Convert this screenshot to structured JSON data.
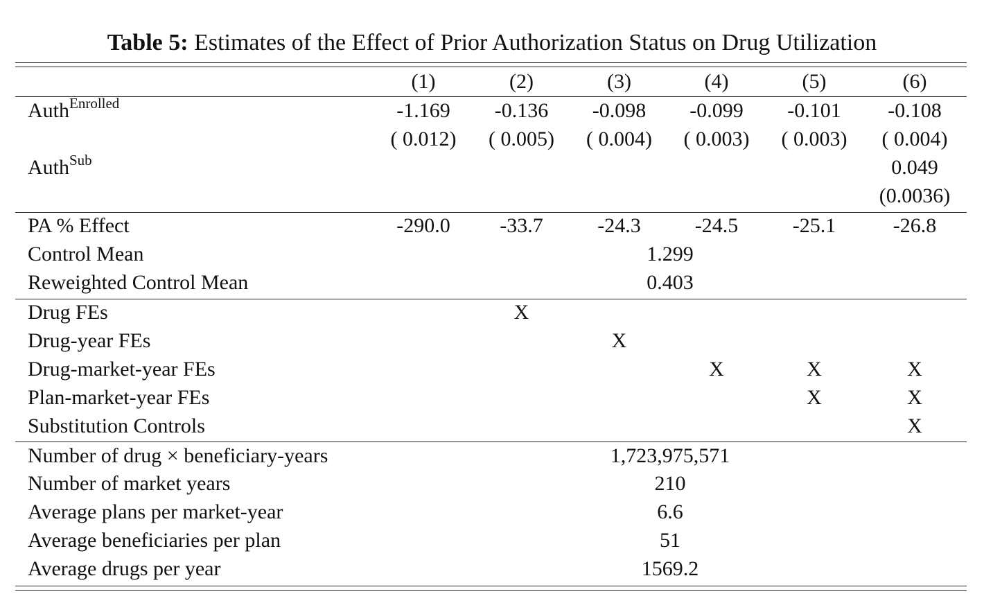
{
  "table": {
    "caption_label": "Table 5:",
    "caption_text": " Estimates of the Effect of Prior Authorization Status on Drug Utilization",
    "column_headers": [
      "(1)",
      "(2)",
      "(3)",
      "(4)",
      "(5)",
      "(6)"
    ],
    "auth_enrolled": {
      "base": "Auth",
      "sup": "Enrolled",
      "coef": [
        "-1.169",
        "-0.136",
        "-0.098",
        "-0.099",
        "-0.101",
        "-0.108"
      ],
      "se": [
        "( 0.012)",
        "( 0.005)",
        "( 0.004)",
        "( 0.003)",
        "( 0.003)",
        "( 0.004)"
      ]
    },
    "auth_sub": {
      "base": "Auth",
      "sup": "Sub",
      "coef_col6": "0.049",
      "se_col6": "(0.0036)"
    },
    "pa_effect": {
      "label": "PA % Effect",
      "values": [
        "-290.0",
        "-33.7",
        "-24.3",
        "-24.5",
        "-25.1",
        "-26.8"
      ]
    },
    "control_mean": {
      "label": "Control Mean",
      "value": "1.299"
    },
    "reweighted_control_mean": {
      "label": "Reweighted Control Mean",
      "value": "0.403"
    },
    "fixed_effects": [
      {
        "label": "Drug FEs",
        "marks": [
          "",
          "X",
          "",
          "",
          "",
          ""
        ]
      },
      {
        "label": "Drug-year FEs",
        "marks": [
          "",
          "",
          "X",
          "",
          "",
          ""
        ]
      },
      {
        "label": "Drug-market-year FEs",
        "marks": [
          "",
          "",
          "",
          "X",
          "X",
          "X"
        ]
      },
      {
        "label": "Plan-market-year FEs",
        "marks": [
          "",
          "",
          "",
          "",
          "X",
          "X"
        ]
      },
      {
        "label": "Substitution Controls",
        "marks": [
          "",
          "",
          "",
          "",
          "",
          "X"
        ]
      }
    ],
    "summary": [
      {
        "label": "Number of drug × beneficiary-years",
        "value": "1,723,975,571"
      },
      {
        "label": "Number of market years",
        "value": "210"
      },
      {
        "label": "Average plans per market-year",
        "value": "6.6"
      },
      {
        "label": "Average beneficiaries per plan",
        "value": "51"
      },
      {
        "label": "Average drugs per year",
        "value": "1569.2"
      }
    ]
  }
}
